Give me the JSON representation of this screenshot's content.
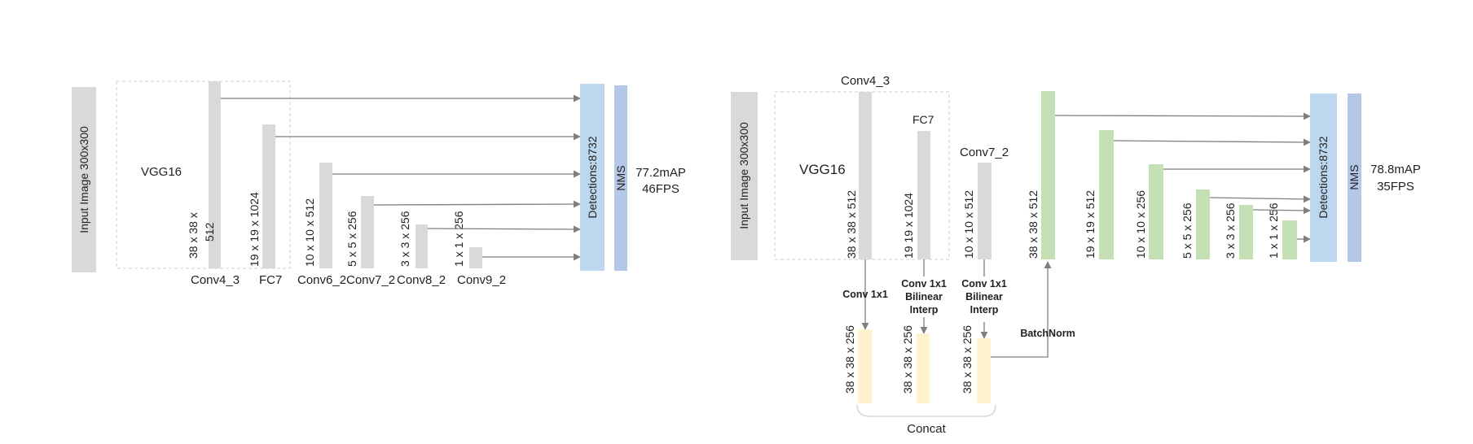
{
  "colors": {
    "backbone": "#d9d9d9",
    "extra": "#c5e0b4",
    "fused": "#fff2cc",
    "detections": "#bdd7ee",
    "nms": "#b4c7e7",
    "arrow": "#7f7f7f",
    "dashed": "#cfcfcf"
  },
  "left": {
    "input_label": "Input Image 300x300",
    "backbone_label": "VGG16",
    "layers": [
      {
        "name": "Conv4_3",
        "dims": "38 x 38 x",
        "dims2": "512"
      },
      {
        "name": "FC7",
        "dims": "19 x 19 x 1024"
      },
      {
        "name": "Conv6_2",
        "dims": "10 x 10 x 512"
      },
      {
        "name": "Conv7_2",
        "dims": "5 x 5 x 256"
      },
      {
        "name": "Conv8_2",
        "dims": "3 x 3 x 256"
      },
      {
        "name": "Conv9_2",
        "dims": "1 x 1 x 256"
      }
    ],
    "detections_label": "Detections:8732",
    "nms_label": "NMS",
    "result_map": "77.2mAP",
    "result_fps": "46FPS"
  },
  "right": {
    "input_label": "Input Image 300x300",
    "backbone_label": "VGG16",
    "backbone_layers": [
      {
        "name": "Conv4_3",
        "dims": "38 x 38 x 512"
      },
      {
        "name": "FC7",
        "dims": "19 19 x 1024"
      },
      {
        "name": "Conv7_2",
        "dims": "10 x 10 x 512"
      }
    ],
    "fusion_ops": [
      {
        "lines": [
          "Conv 1x1"
        ]
      },
      {
        "lines": [
          "Conv 1x1",
          "Bilinear",
          "Interp"
        ]
      },
      {
        "lines": [
          "Conv 1x1",
          "Bilinear",
          "Interp"
        ]
      }
    ],
    "fused_dims": [
      "38 x 38 x 256",
      "38 x 38 x 256",
      "38 x 38 x 256"
    ],
    "concat_label": "Concat",
    "batchnorm_label": "BatchNorm",
    "pyramid_dims": [
      "38 x 38 x 512",
      "19 x 19 x 512",
      "10 x 10 x 256",
      "5 x 5 x 256",
      "3 x 3 x 256",
      "1 x 1 x 256"
    ],
    "detections_label": "Detections:8732",
    "nms_label": "NMS",
    "result_map": "78.8mAP",
    "result_fps": "35FPS"
  }
}
